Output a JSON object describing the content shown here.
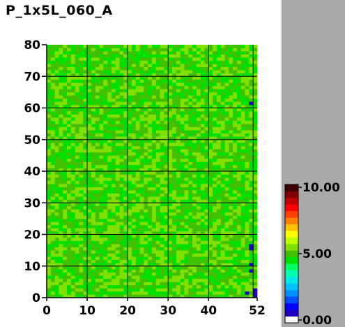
{
  "chart_data": {
    "type": "heatmap",
    "title": "P_1x5L_060_A",
    "x_range": [
      0,
      52
    ],
    "y_range": [
      0,
      80
    ],
    "x_ticks": [
      0,
      10,
      20,
      30,
      40,
      52
    ],
    "x_tick_labels": [
      "0",
      "10",
      "20",
      "30",
      "40",
      "52"
    ],
    "y_ticks": [
      0,
      10,
      20,
      30,
      40,
      50,
      60,
      70,
      80
    ],
    "y_tick_labels": [
      "0",
      "10",
      "20",
      "30",
      "40",
      "50",
      "60",
      "70",
      "80"
    ],
    "grid": true,
    "grid_x": [
      10,
      20,
      30,
      40,
      51
    ],
    "grid_y": [
      10,
      20,
      30,
      40,
      50,
      60,
      70
    ],
    "base_value": 5.0,
    "typical_value_range": [
      4.3,
      5.7
    ],
    "low_cells": [
      {
        "x": 50,
        "y": 61,
        "value": 0.8
      },
      {
        "x": 50,
        "y": 16,
        "value": 0.8
      },
      {
        "x": 50,
        "y": 15,
        "value": 0.8
      },
      {
        "x": 50,
        "y": 10,
        "value": 0.8
      },
      {
        "x": 50,
        "y": 8,
        "value": 0.8
      },
      {
        "x": 49,
        "y": 1,
        "value": 0.8
      },
      {
        "x": 51,
        "y": 2,
        "value": 0.8
      },
      {
        "x": 51,
        "y": 1,
        "value": 0.8
      },
      {
        "x": 51,
        "y": 0,
        "value": 0.8
      }
    ],
    "colorbar": {
      "min": 0.0,
      "max": 10.0,
      "tick_values": [
        0,
        5,
        10
      ],
      "labels": [
        "0.00",
        "5.00",
        "10.00"
      ],
      "colors": [
        "#ffffff",
        "#2000c0",
        "#0000ff",
        "#0050ff",
        "#0090ff",
        "#00c0ff",
        "#00e8e8",
        "#00ffb0",
        "#00ff60",
        "#00e000",
        "#40c000",
        "#80e000",
        "#c0ff00",
        "#ffff00",
        "#ffc000",
        "#ff8000",
        "#ff4000",
        "#ff0000",
        "#c00000",
        "#800000",
        "#400000"
      ]
    }
  }
}
